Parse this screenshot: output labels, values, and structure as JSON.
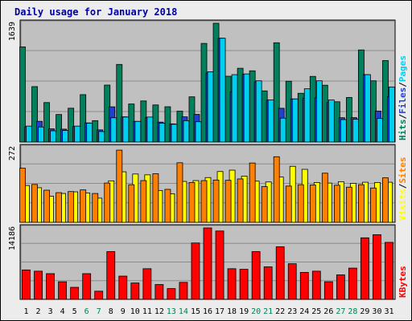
{
  "chart_data": [
    {
      "type": "bar",
      "title": "Daily usage for January 2018",
      "categories": [
        "1",
        "2",
        "3",
        "4",
        "5",
        "6",
        "7",
        "8",
        "9",
        "10",
        "11",
        "12",
        "13",
        "14",
        "15",
        "16",
        "17",
        "18",
        "19",
        "20",
        "21",
        "22",
        "23",
        "24",
        "25",
        "26",
        "27",
        "28",
        "29",
        "30",
        "31"
      ],
      "weekend_days": [
        6,
        7,
        13,
        14,
        20,
        21,
        27,
        28
      ],
      "ymax_label": "1639",
      "ymax": 1639,
      "series": [
        {
          "name": "Hits",
          "color": "#00805c",
          "values": [
            1313,
            765,
            545,
            380,
            467,
            654,
            295,
            786,
            1071,
            525,
            567,
            512,
            487,
            426,
            624,
            1361,
            1639,
            908,
            1018,
            983,
            706,
            1370,
            839,
            673,
            906,
            784,
            556,
            615,
            1271,
            845,
            1124
          ]
        },
        {
          "name": "Files",
          "color": "#2040d0",
          "values": [
            208,
            286,
            182,
            178,
            215,
            264,
            168,
            486,
            348,
            285,
            338,
            275,
            251,
            348,
            382,
            950,
            1432,
            690,
            934,
            830,
            578,
            466,
            595,
            603,
            610,
            549,
            336,
            337,
            930,
            427,
            627
          ]
        },
        {
          "name": "Pages",
          "color": "#00d0f0",
          "values": [
            220,
            208,
            155,
            160,
            220,
            260,
            145,
            335,
            345,
            285,
            345,
            260,
            245,
            295,
            280,
            970,
            1432,
            930,
            940,
            845,
            580,
            330,
            595,
            735,
            845,
            580,
            310,
            315,
            930,
            325,
            760
          ]
        }
      ]
    },
    {
      "type": "bar",
      "ymax_label": "272",
      "ymax": 272,
      "series": [
        {
          "name": "Visits",
          "color": "#ffff00",
          "values": [
            134,
            126,
            95,
            105,
            111,
            107,
            88,
            151,
            184,
            176,
            173,
            116,
            104,
            149,
            152,
            163,
            185,
            190,
            168,
            150,
            147,
            165,
            204,
            193,
            145,
            143,
            148,
            142,
            146,
            145,
            146
          ]
        },
        {
          "name": "Sites",
          "color": "#ff8000",
          "values": [
            197,
            138,
            117,
            108,
            112,
            118,
            105,
            143,
            263,
            137,
            152,
            177,
            120,
            217,
            145,
            152,
            154,
            153,
            158,
            216,
            130,
            239,
            132,
            137,
            136,
            179,
            135,
            128,
            137,
            125,
            162
          ]
        }
      ]
    },
    {
      "type": "bar",
      "ymax_label": "14186",
      "ymax": 14186,
      "series": [
        {
          "name": "KBytes",
          "color": "#ff0000",
          "values": [
            5840,
            5595,
            5104,
            3490,
            2386,
            5104,
            1618,
            9480,
            4614,
            3250,
            6085,
            2943,
            2136,
            3378,
            11194,
            14186,
            13575,
            6085,
            5963,
            9480,
            6454,
            10438,
            7072,
            5350,
            5595,
            3499,
            4860,
            6200,
            12223,
            12836,
            11317
          ]
        }
      ]
    }
  ],
  "side_labels": {
    "top": [
      {
        "text": "Hits",
        "color": "#00805c"
      },
      {
        "text": "/",
        "color": "#000000"
      },
      {
        "text": "Files",
        "color": "#2040d0"
      },
      {
        "text": "/",
        "color": "#000000"
      },
      {
        "text": "Pages",
        "color": "#00d0f0"
      }
    ],
    "mid": [
      {
        "text": "Visits",
        "color": "#ffff00"
      },
      {
        "text": "/",
        "color": "#000000"
      },
      {
        "text": "Sites",
        "color": "#ff8000"
      }
    ],
    "bot": [
      {
        "text": "KBytes",
        "color": "#ff0000"
      }
    ]
  },
  "colors": {
    "title": "#0000a0",
    "panel_bg": "#c0c0c0",
    "weekday_label": "#000000",
    "weekend_label": "#00805c"
  }
}
